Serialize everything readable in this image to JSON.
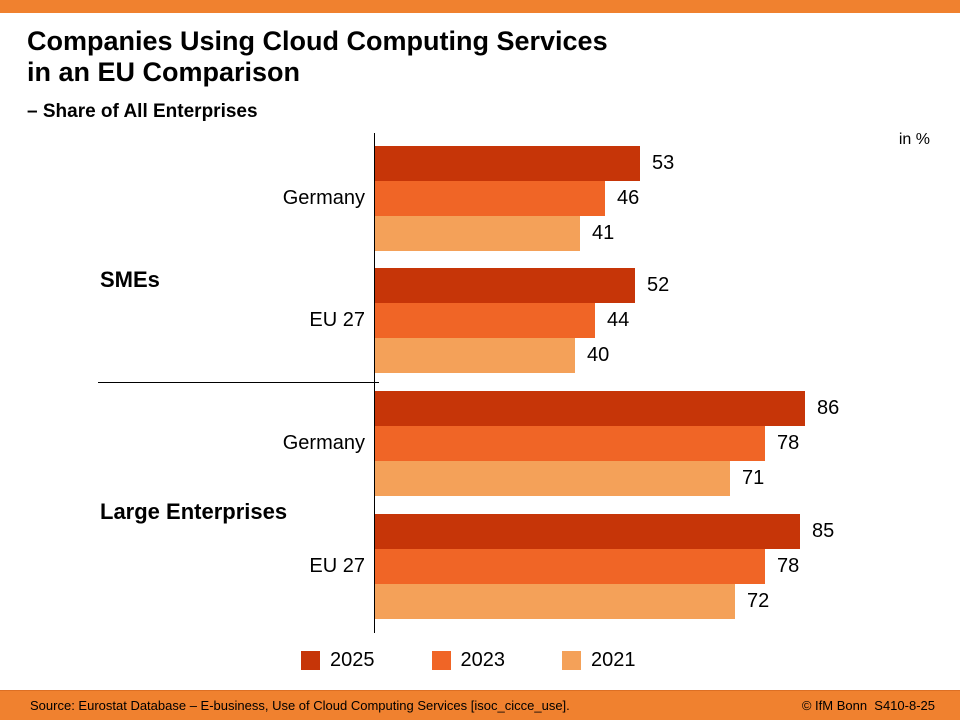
{
  "header": {
    "title_line1": "Companies Using Cloud Computing Services",
    "title_line2": "in an EU Comparison",
    "subtitle": "– Share of All Enterprises"
  },
  "chart_data": {
    "type": "bar",
    "orientation": "horizontal",
    "unit_label": "in %",
    "xlim": [
      0,
      100
    ],
    "grid": false,
    "legend_position": "bottom",
    "series_order": [
      "2025",
      "2023",
      "2021"
    ],
    "colors": {
      "2025": "#C63508",
      "2023": "#F06526",
      "2021": "#F4A159"
    },
    "sections": [
      {
        "label": "SMEs",
        "groups": [
          {
            "label": "Germany",
            "values": {
              "2025": 53,
              "2023": 46,
              "2021": 41
            }
          },
          {
            "label": "EU 27",
            "values": {
              "2025": 52,
              "2023": 44,
              "2021": 40
            }
          }
        ]
      },
      {
        "label": "Large Enterprises",
        "groups": [
          {
            "label": "Germany",
            "values": {
              "2025": 86,
              "2023": 78,
              "2021": 71
            }
          },
          {
            "label": "EU 27",
            "values": {
              "2025": 85,
              "2023": 78,
              "2021": 72
            }
          }
        ]
      }
    ],
    "legend": [
      "2025",
      "2023",
      "2021"
    ]
  },
  "footer": {
    "source": "Source: Eurostat Database – E-business, Use of Cloud Computing Services [isoc_cicce_use].",
    "copyright": "© IfM Bonn  S410-8-25"
  },
  "theme": {
    "accent_bar": "#F0812F",
    "text": "#000000"
  }
}
